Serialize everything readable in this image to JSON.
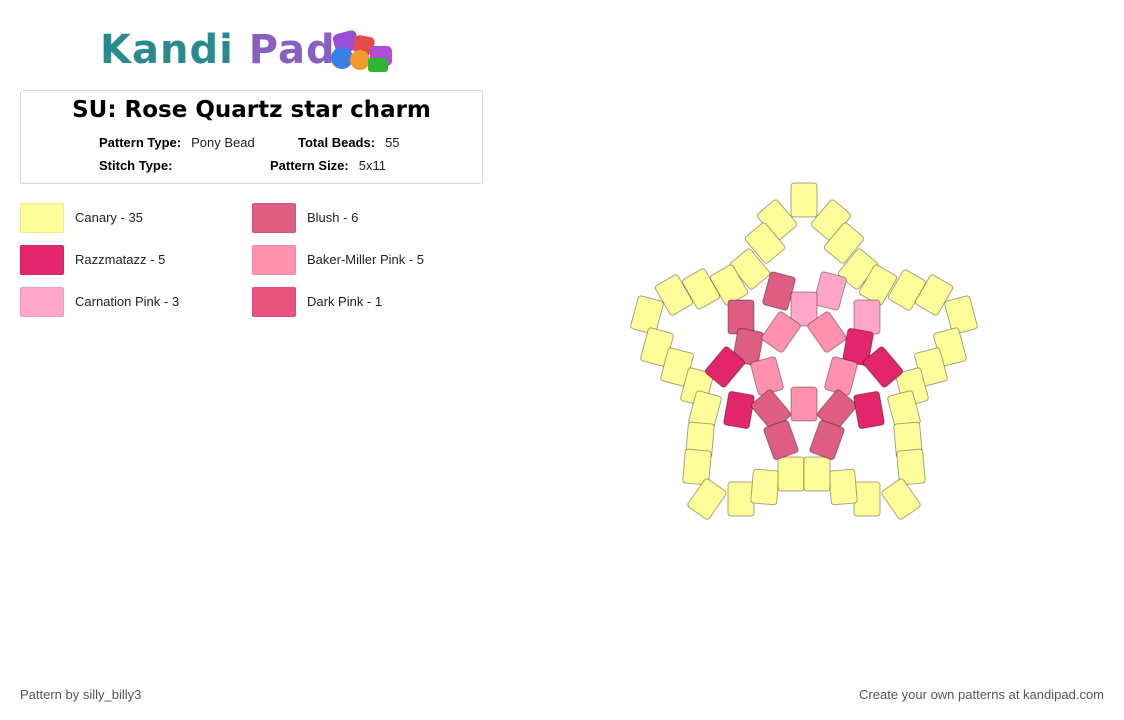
{
  "brand": {
    "part1": "Kandi",
    "part2": "Pad"
  },
  "pattern": {
    "title": "SU: Rose Quartz star charm",
    "type_label": "Pattern Type:",
    "type_value": "Pony Bead",
    "beads_label": "Total Beads:",
    "beads_value": "55",
    "stitch_label": "Stitch Type:",
    "stitch_value": "",
    "size_label": "Pattern Size:",
    "size_value": "5x11"
  },
  "legend": [
    {
      "name": "Canary - 35",
      "color": "#fdfd99"
    },
    {
      "name": "Blush - 6",
      "color": "#de5d83"
    },
    {
      "name": "Razzmatazz - 5",
      "color": "#e3256b"
    },
    {
      "name": "Baker-Miller Pink - 5",
      "color": "#ff91af"
    },
    {
      "name": "Carnation Pink - 3",
      "color": "#ffa6c9"
    },
    {
      "name": "Dark Pink - 1",
      "color": "#e75480"
    }
  ],
  "footer": {
    "author": "Pattern by silly_billy3",
    "promo": "Create your own patterns at kandipad.com"
  }
}
